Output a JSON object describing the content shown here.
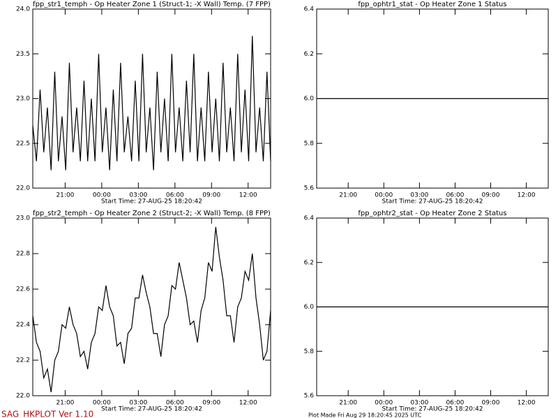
{
  "chart_data": [
    {
      "type": "line",
      "title": "fpp_str1_temph - Op Heater Zone 1 (Struct-1; -X Wall) Temp. (7 FPP)",
      "x_label": "Start Time: 27-AUG-25  18:20:42",
      "x": [
        0,
        0.3,
        0.6,
        0.9,
        1.2,
        1.5,
        1.8,
        2.1,
        2.4,
        2.7,
        3,
        3.3,
        3.6,
        3.9,
        4.2,
        4.5,
        4.8,
        5.1,
        5.4,
        5.7,
        6,
        6.3,
        6.6,
        6.9,
        7.2,
        7.5,
        7.8,
        8.1,
        8.4,
        8.7,
        9,
        9.3,
        9.6,
        9.9,
        10.2,
        10.5,
        10.8,
        11.1,
        11.4,
        11.7,
        12,
        12.3,
        12.6,
        12.9,
        13.2,
        13.5,
        13.8,
        14.1,
        14.4,
        14.7,
        15,
        15.3,
        15.6,
        15.9,
        16.2,
        16.5,
        16.8,
        17.1,
        17.4,
        17.7,
        18,
        18.3,
        18.6,
        18.9,
        19.2,
        19.5
      ],
      "series": [
        {
          "color": "#000000",
          "values": [
            22.7,
            22.3,
            23.1,
            22.4,
            22.9,
            22.2,
            23.3,
            22.3,
            22.8,
            22.2,
            23.4,
            22.4,
            22.9,
            22.3,
            23.2,
            22.3,
            23.0,
            22.3,
            23.5,
            22.4,
            22.9,
            22.2,
            23.1,
            22.3,
            23.4,
            22.4,
            22.8,
            22.3,
            23.2,
            22.3,
            23.5,
            22.4,
            22.9,
            22.2,
            23.3,
            22.4,
            23.0,
            22.3,
            23.5,
            22.4,
            22.9,
            22.3,
            23.2,
            22.4,
            23.5,
            22.3,
            22.9,
            22.3,
            23.3,
            22.4,
            23.0,
            22.3,
            23.4,
            22.4,
            22.9,
            22.3,
            23.5,
            22.4,
            23.1,
            22.3,
            23.7,
            22.4,
            22.9,
            22.3,
            23.3,
            22.3
          ]
        }
      ],
      "xlim": [
        0,
        19.5
      ],
      "xticks": [
        {
          "value": 2.655,
          "label": "21:00"
        },
        {
          "value": 5.655,
          "label": "00:00"
        },
        {
          "value": 8.655,
          "label": "03:00"
        },
        {
          "value": 11.655,
          "label": "06:00"
        },
        {
          "value": 14.655,
          "label": "09:00"
        },
        {
          "value": 17.655,
          "label": "12:00"
        }
      ],
      "ylim": [
        22,
        24
      ],
      "yticks": [
        {
          "value": 22,
          "label": "22.0"
        },
        22.5,
        {
          "value": 23,
          "label": "23.0"
        },
        23.5,
        {
          "value": 24,
          "label": "24.0"
        }
      ]
    },
    {
      "type": "line",
      "title": "fpp_ophtr1_stat - Op Heater Zone 1 Status",
      "x_label": "Start Time: 27-AUG-25  18:20:42",
      "x": [
        0,
        19.5
      ],
      "series": [
        {
          "color": "#000000",
          "values": [
            6,
            6
          ]
        }
      ],
      "xlim": [
        0,
        19.5
      ],
      "xticks": [
        {
          "value": 2.655,
          "label": "21:00"
        },
        {
          "value": 5.655,
          "label": "00:00"
        },
        {
          "value": 8.655,
          "label": "03:00"
        },
        {
          "value": 11.655,
          "label": "06:00"
        },
        {
          "value": 14.655,
          "label": "09:00"
        },
        {
          "value": 17.655,
          "label": "12:00"
        }
      ],
      "ylim": [
        5.6,
        6.4
      ],
      "yticks": [
        5.6,
        5.8,
        {
          "value": 6,
          "label": "6.0"
        },
        6.2,
        6.4
      ]
    },
    {
      "type": "line",
      "title": "fpp_str2_temph - Op Heater Zone 2 (Struct-2; -X Wall) Temp. (8 FPP)",
      "x_label": "Start Time: 27-AUG-25  18:20:42",
      "x": [
        0,
        0.3,
        0.6,
        0.9,
        1.2,
        1.5,
        1.8,
        2.1,
        2.4,
        2.7,
        3,
        3.3,
        3.6,
        3.9,
        4.2,
        4.5,
        4.8,
        5.1,
        5.4,
        5.7,
        6,
        6.3,
        6.6,
        6.9,
        7.2,
        7.5,
        7.8,
        8.1,
        8.4,
        8.7,
        9,
        9.3,
        9.6,
        9.9,
        10.2,
        10.5,
        10.8,
        11.1,
        11.4,
        11.7,
        12,
        12.3,
        12.6,
        12.9,
        13.2,
        13.5,
        13.8,
        14.1,
        14.4,
        14.7,
        15,
        15.3,
        15.6,
        15.9,
        16.2,
        16.5,
        16.8,
        17.1,
        17.4,
        17.7,
        18,
        18.3,
        18.6,
        18.9,
        19.2,
        19.5
      ],
      "series": [
        {
          "color": "#000000",
          "values": [
            22.45,
            22.3,
            22.25,
            22.1,
            22.15,
            22.02,
            22.2,
            22.25,
            22.4,
            22.38,
            22.5,
            22.4,
            22.35,
            22.22,
            22.25,
            22.15,
            22.3,
            22.35,
            22.5,
            22.48,
            22.62,
            22.5,
            22.45,
            22.28,
            22.3,
            22.18,
            22.35,
            22.38,
            22.55,
            22.55,
            22.68,
            22.58,
            22.5,
            22.35,
            22.35,
            22.22,
            22.4,
            22.45,
            22.62,
            22.6,
            22.75,
            22.65,
            22.55,
            22.4,
            22.42,
            22.3,
            22.48,
            22.55,
            22.75,
            22.7,
            22.95,
            22.78,
            22.65,
            22.45,
            22.45,
            22.3,
            22.5,
            22.55,
            22.7,
            22.65,
            22.8,
            22.55,
            22.4,
            22.2,
            22.25,
            22.48
          ]
        }
      ],
      "xlim": [
        0,
        19.5
      ],
      "xticks": [
        {
          "value": 2.655,
          "label": "21:00"
        },
        {
          "value": 5.655,
          "label": "00:00"
        },
        {
          "value": 8.655,
          "label": "03:00"
        },
        {
          "value": 11.655,
          "label": "06:00"
        },
        {
          "value": 14.655,
          "label": "09:00"
        },
        {
          "value": 17.655,
          "label": "12:00"
        }
      ],
      "ylim": [
        22,
        23
      ],
      "yticks": [
        {
          "value": 22,
          "label": "22.0"
        },
        22.2,
        22.4,
        22.6,
        22.8,
        {
          "value": 23,
          "label": "23.0"
        }
      ]
    },
    {
      "type": "line",
      "title": "fpp_ophtr2_stat - Op Heater Zone 2 Status",
      "x_label": "Start Time: 27-AUG-25  18:20:42",
      "x": [
        0,
        19.5
      ],
      "series": [
        {
          "color": "#000000",
          "values": [
            6,
            6
          ]
        }
      ],
      "xlim": [
        0,
        19.5
      ],
      "xticks": [
        {
          "value": 2.655,
          "label": "21:00"
        },
        {
          "value": 5.655,
          "label": "00:00"
        },
        {
          "value": 8.655,
          "label": "03:00"
        },
        {
          "value": 11.655,
          "label": "06:00"
        },
        {
          "value": 14.655,
          "label": "09:00"
        },
        {
          "value": 17.655,
          "label": "12:00"
        }
      ],
      "ylim": [
        5.6,
        6.4
      ],
      "yticks": [
        5.6,
        5.8,
        {
          "value": 6,
          "label": "6.0"
        },
        6.2,
        6.4
      ]
    }
  ],
  "footer": {
    "program": "SAG_HKPLOT  Ver 1.10",
    "plot_made": "Plot Made Fri Aug 29 18:20:45 2025 UTC"
  }
}
